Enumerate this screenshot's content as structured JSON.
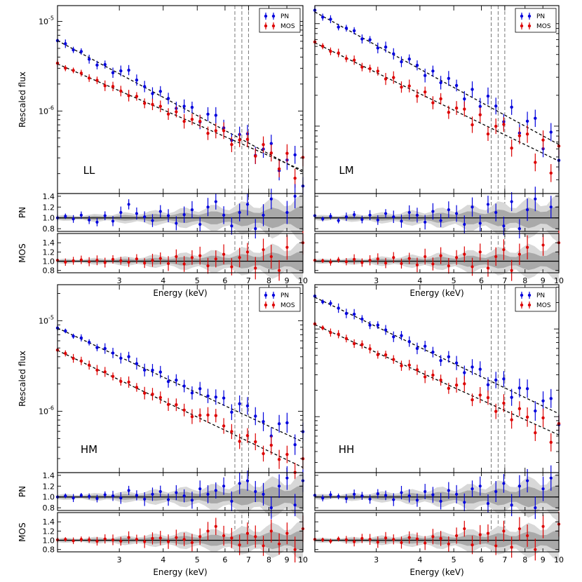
{
  "figure": {
    "shared_xlabel": "Energy (keV)",
    "top_ylabel": "Rescaled flux",
    "residual_ylabel_pn": "PN",
    "residual_ylabel_mos": "MOS"
  },
  "chart_data": [
    {
      "type": "scatter",
      "panel": "LL",
      "xlabel": "Energy (keV)",
      "ylabel": "Rescaled flux",
      "xscale": "log",
      "yscale": "log",
      "xlim": [
        2.0,
        10.0
      ],
      "ylim": [
        1.2e-07,
        1.5e-05
      ],
      "x_ticks": [
        "3",
        "4",
        "5",
        "6",
        "7",
        "8",
        "9",
        "10"
      ],
      "y_ticks": [
        "10^-5",
        "10^-6"
      ],
      "legend": [
        "PN",
        "MOS"
      ],
      "line_energies_keV": [
        6.4,
        6.7,
        7.0
      ],
      "fit": {
        "PN": {
          "norm_at_2keV": 6.1e-06,
          "index": 2.1
        },
        "MOS": {
          "norm_at_2keV": 3.35e-06,
          "index": 1.7
        }
      },
      "series": [
        {
          "name": "PN",
          "color": "#0000dd",
          "flux_anomaly": [
            0,
            0.03,
            -0.02,
            0.05,
            -0.04,
            -0.08,
            0.04,
            -0.06,
            0.1,
            0.25,
            0.08,
            0.02,
            -0.05,
            0.12,
            0.04,
            -0.1,
            0.06,
            0.15,
            -0.12,
            0.2,
            0.3,
            0.05,
            -0.15,
            0.1,
            0.25,
            -0.2,
            0.05,
            0.35,
            -0.25,
            0.1,
            0.4,
            -0.3
          ]
        },
        {
          "name": "MOS",
          "color": "#dd0000",
          "flux_anomaly": [
            0.02,
            -0.02,
            0.01,
            0.03,
            -0.01,
            0.02,
            -0.03,
            0.04,
            0.01,
            -0.02,
            0.05,
            -0.04,
            0.02,
            0.06,
            -0.05,
            0.1,
            -0.06,
            0.08,
            0.12,
            -0.1,
            0.05,
            0.15,
            -0.12,
            0.08,
            0.2,
            -0.15,
            0.25,
            0.1,
            -0.2,
            0.3,
            -0.25,
            0.4
          ]
        }
      ],
      "residuals": {
        "PN_ylim": [
          0.75,
          1.45
        ],
        "MOS_ylim": [
          0.75,
          1.6
        ],
        "PN_ticks": [
          "1.4",
          "1.2",
          "1.0",
          "0.8"
        ],
        "MOS_ticks": [
          "1.4",
          "1.2",
          "1.0",
          "0.8"
        ]
      }
    },
    {
      "type": "scatter",
      "panel": "LM",
      "xlabel": "Energy (keV)",
      "ylabel": "",
      "xscale": "log",
      "yscale": "log",
      "xlim": [
        2.0,
        10.0
      ],
      "ylim": [
        2.2e-07,
        1.5e-05
      ],
      "x_ticks": [
        "3",
        "4",
        "5",
        "6",
        "7",
        "8",
        "9",
        "10"
      ],
      "y_ticks": [],
      "legend": [
        "PN",
        "MOS"
      ],
      "line_energies_keV": [
        6.4,
        6.7,
        7.0
      ],
      "fit": {
        "PN": {
          "norm_at_2keV": 1.3e-05,
          "index": 1.85
        },
        "MOS": {
          "norm_at_2keV": 6.5e-06,
          "index": 1.65
        }
      },
      "series": [
        {
          "name": "PN",
          "color": "#0000dd",
          "flux_anomaly": [
            0.04,
            -0.02,
            0.03,
            -0.05,
            0.02,
            0.06,
            -0.03,
            0.05,
            -0.04,
            0.08,
            0.02,
            -0.06,
            0.1,
            0.05,
            -0.08,
            0.12,
            -0.05,
            0.15,
            0.08,
            -0.12,
            0.2,
            -0.1,
            0.25,
            0.1,
            -0.15,
            0.3,
            -0.2,
            0.15,
            0.35,
            -0.25,
            0.2,
            -0.3
          ]
        },
        {
          "name": "MOS",
          "color": "#dd0000",
          "flux_anomaly": [
            0.02,
            0.01,
            -0.02,
            0.03,
            -0.01,
            0.04,
            -0.03,
            0.02,
            0.05,
            -0.04,
            0.08,
            -0.05,
            0.06,
            -0.08,
            0.1,
            -0.06,
            0.12,
            -0.1,
            0.08,
            0.15,
            -0.12,
            0.2,
            -0.15,
            0.1,
            0.25,
            -0.2,
            0.15,
            0.3,
            -0.25,
            0.35,
            -0.3,
            0.4
          ]
        }
      ],
      "residuals": {
        "PN_ylim": [
          0.75,
          1.45
        ],
        "MOS_ylim": [
          0.75,
          1.6
        ],
        "PN_ticks": [],
        "MOS_ticks": []
      }
    },
    {
      "type": "scatter",
      "panel": "HM",
      "xlabel": "Energy (keV)",
      "ylabel": "Rescaled flux",
      "xscale": "log",
      "yscale": "log",
      "xlim": [
        2.0,
        10.0
      ],
      "ylim": [
        2.1e-07,
        2.5e-05
      ],
      "x_ticks": [
        "3",
        "4",
        "5",
        "6",
        "7",
        "8",
        "9",
        "10"
      ],
      "y_ticks": [
        "10^-5",
        "10^-6"
      ],
      "legend": [
        "PN",
        "MOS"
      ],
      "line_energies_keV": [
        6.4,
        6.7,
        7.0
      ],
      "fit": {
        "PN": {
          "norm_at_2keV": 8.3e-06,
          "index": 1.8
        },
        "MOS": {
          "norm_at_2keV": 4.7e-06,
          "index": 1.85
        }
      },
      "series": [
        {
          "name": "PN",
          "color": "#0000dd",
          "flux_anomaly": [
            0,
            0.02,
            -0.02,
            0.03,
            0.01,
            -0.03,
            0.04,
            0.02,
            -0.02,
            0.12,
            0.03,
            -0.04,
            0.05,
            0.1,
            -0.05,
            0.08,
            0.02,
            -0.06,
            0.15,
            0.05,
            0.12,
            0.2,
            -0.08,
            0.25,
            0.3,
            0.1,
            0.05,
            -0.2,
            0.2,
            0.35,
            -0.15,
            0.3
          ]
        },
        {
          "name": "MOS",
          "color": "#dd0000",
          "flux_anomaly": [
            0.01,
            0.02,
            -0.01,
            0.02,
            0.01,
            -0.02,
            0.03,
            0.01,
            -0.02,
            0.06,
            0.02,
            -0.03,
            0.04,
            0.05,
            -0.03,
            0.06,
            0.02,
            -0.05,
            0.08,
            0.2,
            0.3,
            0.1,
            0.05,
            -0.1,
            0.15,
            0.08,
            -0.12,
            0.2,
            -0.08,
            0.15,
            -0.2,
            0.25
          ]
        }
      ],
      "residuals": {
        "PN_ylim": [
          0.75,
          1.45
        ],
        "MOS_ylim": [
          0.75,
          1.6
        ],
        "PN_ticks": [
          "1.4",
          "1.2",
          "1.0",
          "0.8"
        ],
        "MOS_ticks": [
          "1.4",
          "1.2",
          "1.0",
          "0.8"
        ]
      }
    },
    {
      "type": "scatter",
      "panel": "HH",
      "xlabel": "Energy (keV)",
      "ylabel": "",
      "xscale": "log",
      "yscale": "log",
      "xlim": [
        2.0,
        10.0
      ],
      "ylim": [
        2.3e-07,
        3.2e-05
      ],
      "x_ticks": [
        "3",
        "4",
        "5",
        "6",
        "7",
        "8",
        "9",
        "10"
      ],
      "y_ticks": [],
      "legend": [
        "PN",
        "MOS"
      ],
      "line_energies_keV": [
        6.4,
        6.7,
        7.0
      ],
      "fit": {
        "PN": {
          "norm_at_2keV": 2.3e-05,
          "index": 1.9
        },
        "MOS": {
          "norm_at_2keV": 1.12e-05,
          "index": 1.8
        }
      },
      "series": [
        {
          "name": "PN",
          "color": "#0000dd",
          "flux_anomaly": [
            0.03,
            -0.02,
            0.04,
            0.01,
            -0.03,
            0.05,
            0.02,
            -0.04,
            0.06,
            0.03,
            -0.05,
            0.08,
            0.02,
            -0.06,
            0.1,
            0.04,
            -0.08,
            0.12,
            0.05,
            -0.1,
            0.15,
            0.2,
            -0.12,
            0.1,
            0.25,
            -0.15,
            0.2,
            0.3,
            -0.2,
            0.15,
            0.35,
            -0.25
          ]
        },
        {
          "name": "MOS",
          "color": "#dd0000",
          "flux_anomaly": [
            0.02,
            0.01,
            -0.02,
            0.03,
            0.01,
            -0.03,
            0.04,
            0.02,
            -0.04,
            0.05,
            0.02,
            -0.05,
            0.06,
            0.03,
            -0.06,
            0.08,
            0.04,
            -0.08,
            0.1,
            0.25,
            -0.1,
            0.12,
            0.15,
            -0.12,
            0.2,
            -0.15,
            0.25,
            0.1,
            -0.2,
            0.3,
            -0.25,
            0.35
          ]
        }
      ],
      "residuals": {
        "PN_ylim": [
          0.75,
          1.45
        ],
        "MOS_ylim": [
          0.75,
          1.6
        ],
        "PN_ticks": [],
        "MOS_ticks": []
      }
    }
  ]
}
